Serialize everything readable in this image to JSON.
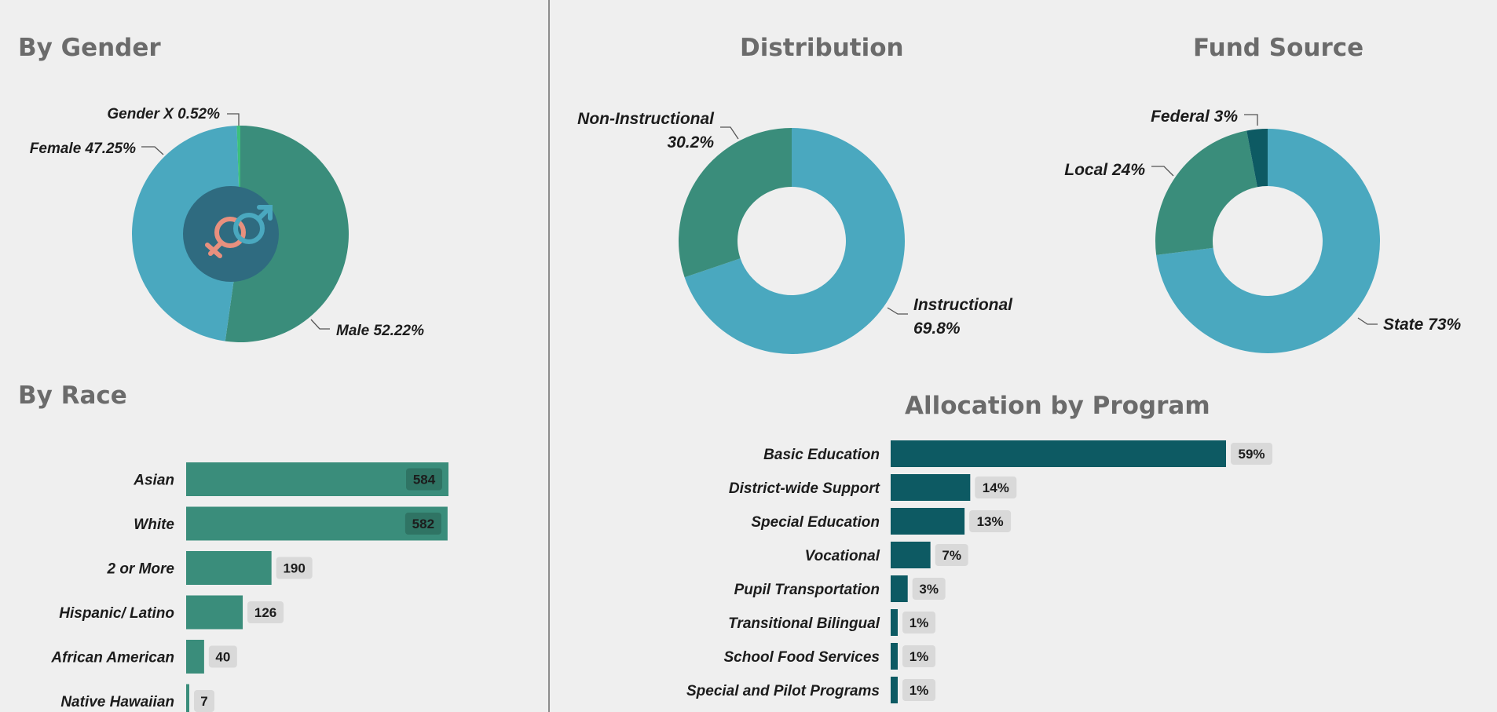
{
  "titles": {
    "gender": "By Gender",
    "race": "By Race",
    "distribution": "Distribution",
    "fund": "Fund Source",
    "program": "Allocation by Program"
  },
  "colors": {
    "teal_green": "#3a8d7b",
    "light_blue": "#4aa8bf",
    "dark_teal": "#0d5a63",
    "bright_green": "#3dbf7c",
    "badge": "#d9d9d9",
    "badge_dark": "#2f7464",
    "center_disc": "#2f6b80",
    "female_symbol": "#e8907e",
    "male_symbol": "#4aa8bf"
  },
  "chart_data": [
    {
      "type": "pie",
      "title": "By Gender",
      "center_icon": "gender-symbols-icon",
      "slices": [
        {
          "name": "Male",
          "value": 52.22,
          "label": "Male 52.22%",
          "color": "#3a8d7b"
        },
        {
          "name": "Female",
          "value": 47.25,
          "label": "Female 47.25%",
          "color": "#4aa8bf"
        },
        {
          "name": "Gender X",
          "value": 0.52,
          "label": "Gender X 0.52%",
          "color": "#3dbf7c"
        }
      ]
    },
    {
      "type": "bar",
      "orientation": "horizontal",
      "title": "By Race",
      "categories": [
        "Asian",
        "White",
        "2 or More",
        "Hispanic/ Latino",
        "African American",
        "Native Hawaiian"
      ],
      "values": [
        584,
        582,
        190,
        126,
        40,
        7
      ],
      "value_labels": [
        "584",
        "582",
        "190",
        "126",
        "40",
        "7"
      ],
      "xlim": [
        0,
        584
      ]
    },
    {
      "type": "pie",
      "donut": true,
      "title": "Distribution",
      "slices": [
        {
          "name": "Instructional",
          "value": 69.8,
          "label_lines": [
            "Instructional",
            "69.8%"
          ],
          "color": "#4aa8bf"
        },
        {
          "name": "Non-Instructional",
          "value": 30.2,
          "label_lines": [
            "Non-Instructional",
            "30.2%"
          ],
          "color": "#3a8d7b"
        }
      ]
    },
    {
      "type": "pie",
      "donut": true,
      "title": "Fund Source",
      "slices": [
        {
          "name": "State",
          "value": 73,
          "label": "State 73%",
          "color": "#4aa8bf"
        },
        {
          "name": "Local",
          "value": 24,
          "label": "Local 24%",
          "color": "#3a8d7b"
        },
        {
          "name": "Federal",
          "value": 3,
          "label": "Federal 3%",
          "color": "#0d5a63"
        }
      ]
    },
    {
      "type": "bar",
      "orientation": "horizontal",
      "title": "Allocation by Program",
      "categories": [
        "Basic Education",
        "District-wide Support",
        "Special Education",
        "Vocational",
        "Pupil Transportation",
        "Transitional Bilingual",
        "School Food Services",
        "Special and Pilot Programs"
      ],
      "values": [
        59,
        14,
        13,
        7,
        3,
        1,
        1,
        1
      ],
      "value_labels": [
        "59%",
        "14%",
        "13%",
        "7%",
        "3%",
        "1%",
        "1%",
        "1%"
      ],
      "xlim": [
        0,
        59
      ]
    }
  ]
}
